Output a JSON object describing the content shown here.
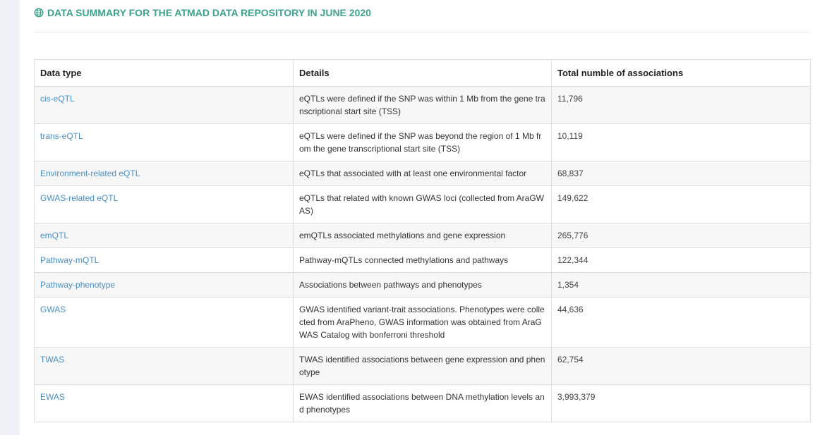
{
  "header": {
    "title": "DATA SUMMARY FOR THE ATMAD DATA REPOSITORY IN JUNE 2020",
    "icon": "globe-icon",
    "accent_color": "#3aa28d"
  },
  "table": {
    "columns": [
      "Data type",
      "Details",
      "Total numble of associations"
    ],
    "rows": [
      {
        "type": "cis-eQTL",
        "details": "eQTLs were defined if the SNP was within 1 Mb from the gene transcriptional start site (TSS)",
        "total": "11,796"
      },
      {
        "type": "trans-eQTL",
        "details": "eQTLs were defined if the SNP was beyond the region of 1 Mb from the gene transcriptional start site (TSS)",
        "total": "10,119"
      },
      {
        "type": "Environment-related eQTL",
        "details": "eQTLs that associated with at least one environmental factor",
        "total": "68,837"
      },
      {
        "type": "GWAS-related eQTL",
        "details": "eQTLs that related with known GWAS loci (collected from AraGWAS)",
        "total": "149,622"
      },
      {
        "type": "emQTL",
        "details": "emQTLs associated methylations and gene expression",
        "total": "265,776"
      },
      {
        "type": "Pathway-mQTL",
        "details": "Pathway-mQTLs connected methylations and pathways",
        "total": "122,344"
      },
      {
        "type": "Pathway-phenotype",
        "details": "Associations between pathways and phenotypes",
        "total": "1,354"
      },
      {
        "type": "GWAS",
        "details": "GWAS identified variant-trait associations. Phenotypes were collected from AraPheno, GWAS information was obtained from AraGWAS Catalog with bonferroni threshold",
        "total": "44,636"
      },
      {
        "type": "TWAS",
        "details": "TWAS identified associations between gene expression and phenotype",
        "total": "62,754"
      },
      {
        "type": "EWAS",
        "details": "EWAS identified associations between DNA methylation levels and phenotypes",
        "total": "3,993,379"
      }
    ]
  }
}
